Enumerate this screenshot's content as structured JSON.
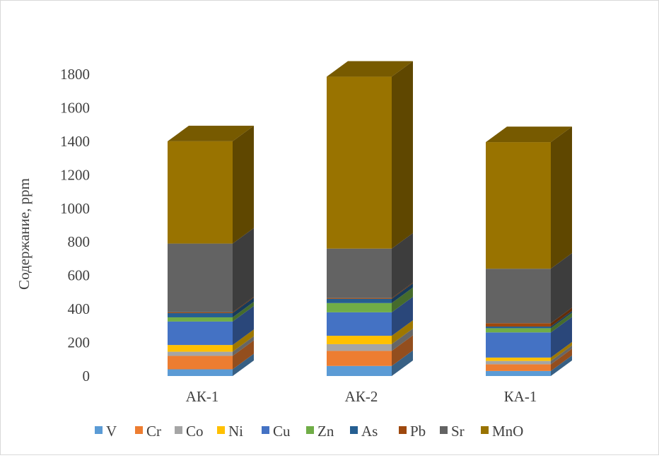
{
  "chart_data": {
    "type": "bar",
    "stacked": true,
    "style": "3d-column",
    "title": "",
    "xlabel": "",
    "ylabel": "Содержание, ppm",
    "ylim": [
      0,
      1800
    ],
    "yticks": [
      "0",
      "200",
      "400",
      "600",
      "800",
      "1000",
      "1200",
      "1400",
      "1600",
      "1800"
    ],
    "grid": false,
    "legend_position": "bottom",
    "categories": [
      "АК-1",
      "АК-2",
      "КА-1"
    ],
    "series": [
      {
        "name": "V",
        "color": "#5b9bd5",
        "values": [
          40,
          60,
          30
        ]
      },
      {
        "name": "Cr",
        "color": "#ed7d31",
        "values": [
          80,
          90,
          40
        ]
      },
      {
        "name": "Co",
        "color": "#a5a5a5",
        "values": [
          25,
          40,
          20
        ]
      },
      {
        "name": "Ni",
        "color": "#ffc000",
        "values": [
          40,
          50,
          20
        ]
      },
      {
        "name": "Cu",
        "color": "#4472c4",
        "values": [
          140,
          140,
          150
        ]
      },
      {
        "name": "Zn",
        "color": "#70ad47",
        "values": [
          25,
          55,
          25
        ]
      },
      {
        "name": "As",
        "color": "#255e91",
        "values": [
          25,
          25,
          10
        ]
      },
      {
        "name": "Pb",
        "color": "#9e480e",
        "values": [
          5,
          5,
          20
        ]
      },
      {
        "name": "Sr",
        "color": "#636363",
        "values": [
          410,
          295,
          325
        ]
      },
      {
        "name": "MnO",
        "color": "#997300",
        "values": [
          610,
          1025,
          755
        ]
      }
    ]
  }
}
